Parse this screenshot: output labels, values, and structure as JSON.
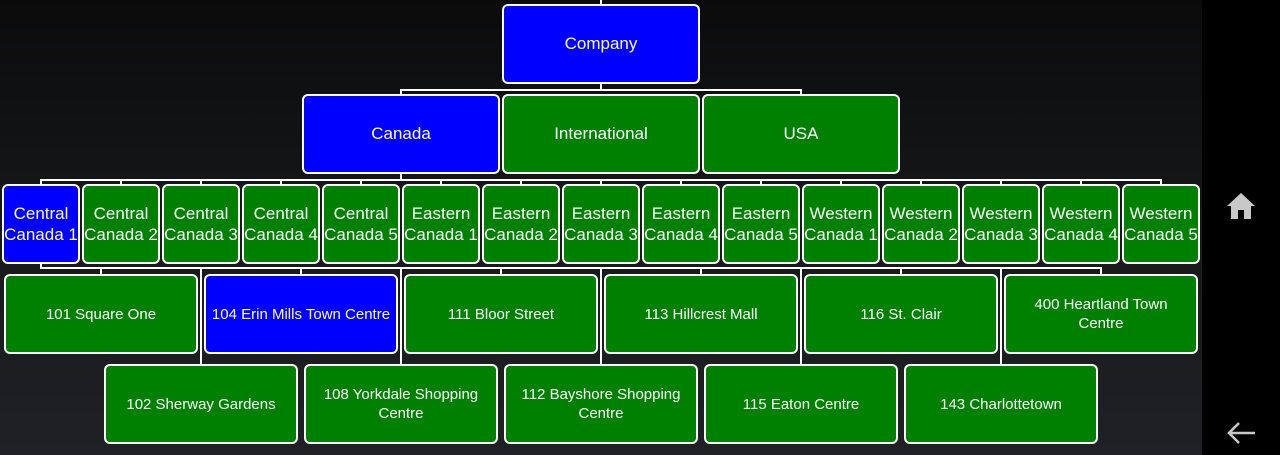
{
  "org_chart": {
    "root": {
      "label": "Company",
      "state": "selected"
    },
    "countries": [
      {
        "label": "Canada",
        "state": "selected"
      },
      {
        "label": "International",
        "state": "normal"
      },
      {
        "label": "USA",
        "state": "normal"
      }
    ],
    "regions": [
      {
        "label": "Central Canada 1",
        "state": "selected"
      },
      {
        "label": "Central Canada 2",
        "state": "normal"
      },
      {
        "label": "Central Canada 3",
        "state": "normal"
      },
      {
        "label": "Central Canada 4",
        "state": "normal"
      },
      {
        "label": "Central Canada 5",
        "state": "normal"
      },
      {
        "label": "Eastern Canada 1",
        "state": "normal"
      },
      {
        "label": "Eastern Canada 2",
        "state": "normal"
      },
      {
        "label": "Eastern Canada 3",
        "state": "normal"
      },
      {
        "label": "Eastern Canada 4",
        "state": "normal"
      },
      {
        "label": "Eastern Canada 5",
        "state": "normal"
      },
      {
        "label": "Western Canada 1",
        "state": "normal"
      },
      {
        "label": "Western Canada 2",
        "state": "normal"
      },
      {
        "label": "Western Canada 3",
        "state": "normal"
      },
      {
        "label": "Western Canada 4",
        "state": "normal"
      },
      {
        "label": "Western Canada 5",
        "state": "normal"
      }
    ],
    "stores_row1": [
      {
        "label": "101 Square One",
        "state": "normal"
      },
      {
        "label": "104 Erin Mills Town Centre",
        "state": "selected"
      },
      {
        "label": "111 Bloor Street",
        "state": "normal"
      },
      {
        "label": "113 Hillcrest Mall",
        "state": "normal"
      },
      {
        "label": "116 St. Clair",
        "state": "normal"
      },
      {
        "label": "400 Heartland Town Centre",
        "state": "normal"
      }
    ],
    "stores_row2": [
      {
        "label": "102 Sherway Gardens",
        "state": "normal"
      },
      {
        "label": "108 Yorkdale Shopping Centre",
        "state": "normal"
      },
      {
        "label": "112 Bayshore Shopping Centre",
        "state": "normal"
      },
      {
        "label": "115 Eaton Centre",
        "state": "normal"
      },
      {
        "label": "143 Charlottetown",
        "state": "normal"
      }
    ]
  },
  "nav_bar": {
    "home_icon": "home-icon",
    "back_icon": "back-arrow-icon"
  },
  "colors": {
    "selected": "#0000ff",
    "normal": "#008000",
    "border": "#ffffff"
  }
}
